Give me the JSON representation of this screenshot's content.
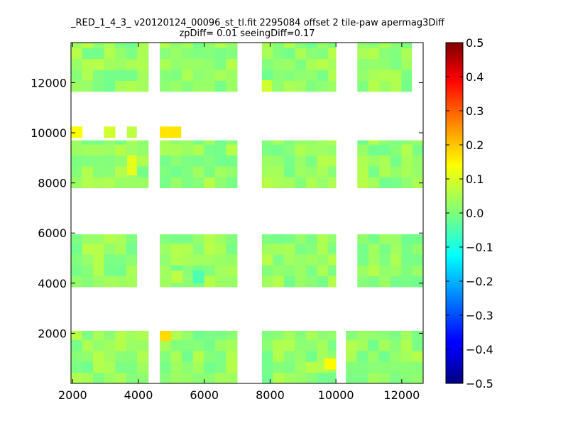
{
  "chart_data": {
    "type": "heatmap",
    "title": "_RED_1_4_3_ v20120124_00096_st_tl.fit 2295084 offset 2 tile-paw apermag3Diff",
    "subtitle": "zpDiff= 0.01 seeingDiff=0.17",
    "xlabel": "",
    "ylabel": "",
    "xlim": [
      1950,
      12650
    ],
    "ylim": [
      0,
      13600
    ],
    "x_ticks": [
      2000,
      4000,
      6000,
      8000,
      10000,
      12000
    ],
    "y_ticks": [
      2000,
      4000,
      6000,
      8000,
      10000,
      12000
    ],
    "colorbar": {
      "colormap": "jet",
      "range": [
        -0.5,
        0.5
      ],
      "ticks": [
        0.5,
        0.4,
        0.3,
        0.2,
        0.1,
        0.0,
        -0.1,
        -0.2,
        -0.3,
        -0.4,
        -0.5
      ],
      "tick_labels": [
        "0.5",
        "0.4",
        "0.3",
        "0.2",
        "0.1",
        "0.0",
        "−0.1",
        "−0.2",
        "−0.3",
        "−0.4",
        "−0.5"
      ]
    },
    "cell_size": [
      335,
      435
    ],
    "typical_value": 0.02,
    "blocks": [
      {
        "x": [
          1950,
          4300
        ],
        "y": [
          13600,
          11650
        ]
      },
      {
        "x": [
          4650,
          7000
        ],
        "y": [
          13600,
          11650
        ]
      },
      {
        "x": [
          7750,
          10000
        ],
        "y": [
          13600,
          11650
        ]
      },
      {
        "x": [
          10650,
          12300
        ],
        "y": [
          13600,
          11650
        ]
      },
      {
        "x": [
          1950,
          4300
        ],
        "y": [
          9700,
          7800
        ]
      },
      {
        "x": [
          4650,
          7000
        ],
        "y": [
          9700,
          7800
        ]
      },
      {
        "x": [
          7750,
          10000
        ],
        "y": [
          9700,
          7800
        ]
      },
      {
        "x": [
          10650,
          12650
        ],
        "y": [
          9700,
          7800
        ]
      },
      {
        "x": [
          1950,
          3950
        ],
        "y": [
          5950,
          3850
        ]
      },
      {
        "x": [
          4650,
          7000
        ],
        "y": [
          5950,
          3850
        ]
      },
      {
        "x": [
          7750,
          10000
        ],
        "y": [
          5950,
          3850
        ]
      },
      {
        "x": [
          10650,
          12650
        ],
        "y": [
          5950,
          3850
        ]
      },
      {
        "x": [
          1950,
          4300
        ],
        "y": [
          2100,
          0
        ]
      },
      {
        "x": [
          4650,
          7000
        ],
        "y": [
          2100,
          0
        ]
      },
      {
        "x": [
          7750,
          10000
        ],
        "y": [
          2100,
          0
        ]
      },
      {
        "x": [
          10300,
          12650
        ],
        "y": [
          2100,
          0
        ]
      }
    ],
    "highlights": [
      {
        "x": [
          1950,
          2300
        ],
        "y": [
          10250,
          9800
        ],
        "value": 0.12
      },
      {
        "x": [
          2950,
          3300
        ],
        "y": [
          10250,
          9800
        ],
        "value": 0.08
      },
      {
        "x": [
          3650,
          3950
        ],
        "y": [
          10250,
          9800
        ],
        "value": 0.06
      },
      {
        "x": [
          4650,
          5300
        ],
        "y": [
          10250,
          9800
        ],
        "value": 0.15
      },
      {
        "x": [
          4650,
          5000
        ],
        "y": [
          2100,
          1700
        ],
        "value": 0.16
      },
      {
        "x": [
          3650,
          3950
        ],
        "y": [
          9100,
          8300
        ],
        "value": 0.1
      },
      {
        "x": [
          9650,
          10000
        ],
        "y": [
          1000,
          550
        ],
        "value": 0.13
      },
      {
        "x": [
          7750,
          8050
        ],
        "y": [
          12100,
          11650
        ],
        "value": 0.08
      },
      {
        "x": [
          5000,
          5350
        ],
        "y": [
          4500,
          4000
        ],
        "value": 0.06
      },
      {
        "x": [
          5650,
          6000
        ],
        "y": [
          4500,
          4000
        ],
        "value": -0.05
      }
    ]
  }
}
